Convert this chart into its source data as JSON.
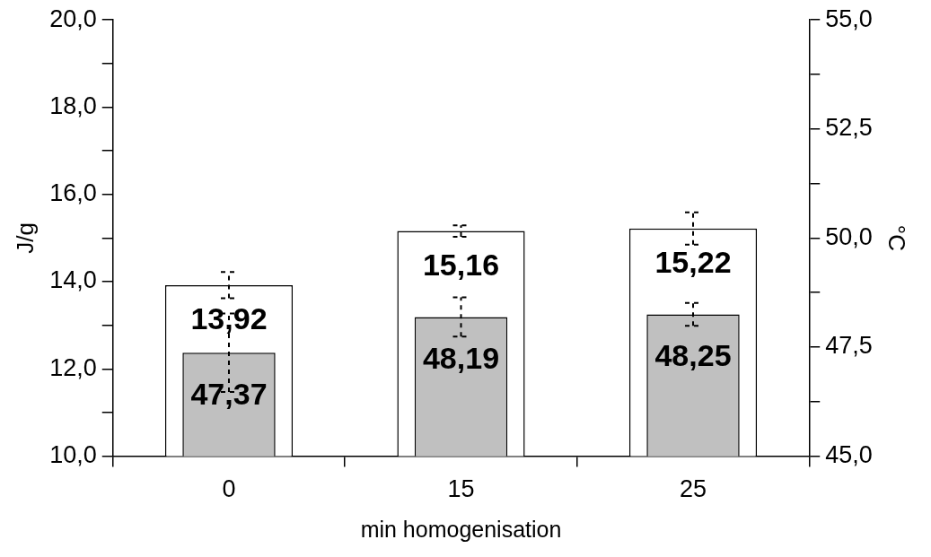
{
  "chart_data": {
    "type": "bar",
    "xlabel": "min homogenisation",
    "ylabel": "J/g",
    "y2label": "°C",
    "categories": [
      "0",
      "15",
      "25"
    ],
    "series": [
      {
        "color": "#ffffff",
        "values": [
          13.92,
          15.16,
          15.22
        ],
        "errors": [
          0.3,
          0.13,
          0.37
        ],
        "value_labels": [
          "13,92",
          "15,16",
          "15,22"
        ]
      },
      {
        "color": "#c0c0c0",
        "axis": "y2",
        "values": [
          47.37,
          48.19,
          48.25
        ],
        "errors": [
          0.9,
          0.45,
          0.26
        ],
        "value_labels": [
          "47,37",
          "48,19",
          "48,25"
        ]
      }
    ],
    "ylim": [
      10,
      20
    ],
    "yticks": [
      {
        "value": 10,
        "label": "10,0"
      },
      {
        "value": 11,
        "label": null
      },
      {
        "value": 12,
        "label": "12,0"
      },
      {
        "value": 13,
        "label": null
      },
      {
        "value": 14,
        "label": "14,0"
      },
      {
        "value": 15,
        "label": null
      },
      {
        "value": 16,
        "label": "16,0"
      },
      {
        "value": 17,
        "label": null
      },
      {
        "value": 18,
        "label": "18,0"
      },
      {
        "value": 19,
        "label": null
      },
      {
        "value": 20,
        "label": "20,0"
      }
    ],
    "y2lim": [
      45,
      55
    ],
    "y2ticks": [
      {
        "value": 45,
        "label": "45,0"
      },
      {
        "value": 46.25,
        "label": null
      },
      {
        "value": 47.5,
        "label": "47,5"
      },
      {
        "value": 48.75,
        "label": null
      },
      {
        "value": 50,
        "label": "50,0"
      },
      {
        "value": 51.25,
        "label": null
      },
      {
        "value": 52.5,
        "label": "52,5"
      },
      {
        "value": 53.75,
        "label": null
      },
      {
        "value": 55,
        "label": "55,0"
      }
    ],
    "grid": false,
    "legend": false,
    "line_style": "dashed"
  }
}
